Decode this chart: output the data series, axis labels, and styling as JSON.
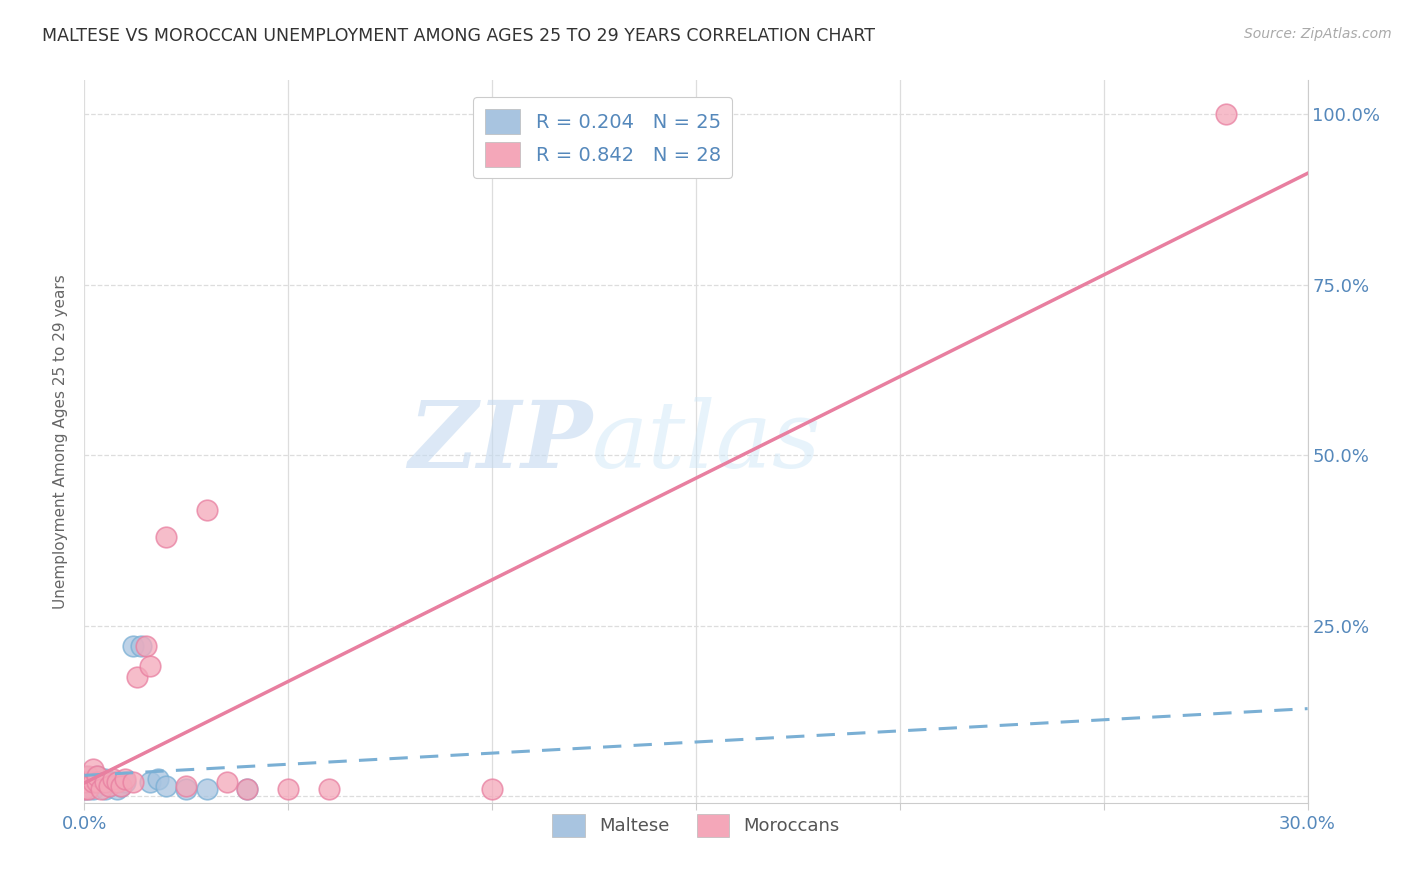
{
  "title": "MALTESE VS MOROCCAN UNEMPLOYMENT AMONG AGES 25 TO 29 YEARS CORRELATION CHART",
  "source": "Source: ZipAtlas.com",
  "ylabel": "Unemployment Among Ages 25 to 29 years",
  "xlim": [
    0.0,
    0.3
  ],
  "ylim": [
    -0.01,
    1.05
  ],
  "ytick_values": [
    0.0,
    0.25,
    0.5,
    0.75,
    1.0
  ],
  "xtick_values": [
    0.0,
    0.05,
    0.1,
    0.15,
    0.2,
    0.25,
    0.3
  ],
  "maltese_color": "#a8c4e0",
  "moroccan_color": "#f4a7b9",
  "maltese_edge_color": "#7aafd4",
  "moroccan_edge_color": "#e87fa0",
  "maltese_R": 0.204,
  "maltese_N": 25,
  "moroccan_R": 0.842,
  "moroccan_N": 28,
  "legend_label_maltese": "Maltese",
  "legend_label_moroccan": "Moroccans",
  "maltese_x": [
    0.0,
    0.0,
    0.0,
    0.001,
    0.001,
    0.002,
    0.002,
    0.003,
    0.003,
    0.004,
    0.005,
    0.005,
    0.006,
    0.007,
    0.008,
    0.009,
    0.01,
    0.012,
    0.014,
    0.016,
    0.018,
    0.02,
    0.025,
    0.03,
    0.04
  ],
  "maltese_y": [
    0.01,
    0.02,
    0.03,
    0.01,
    0.02,
    0.01,
    0.02,
    0.02,
    0.03,
    0.02,
    0.01,
    0.025,
    0.015,
    0.02,
    0.01,
    0.015,
    0.02,
    0.22,
    0.22,
    0.02,
    0.025,
    0.015,
    0.01,
    0.01,
    0.01
  ],
  "moroccan_x": [
    0.0,
    0.0,
    0.001,
    0.001,
    0.002,
    0.002,
    0.003,
    0.003,
    0.004,
    0.005,
    0.006,
    0.007,
    0.008,
    0.009,
    0.01,
    0.012,
    0.013,
    0.015,
    0.016,
    0.02,
    0.025,
    0.03,
    0.035,
    0.04,
    0.05,
    0.06,
    0.1,
    0.28
  ],
  "moroccan_y": [
    0.01,
    0.02,
    0.01,
    0.03,
    0.02,
    0.04,
    0.02,
    0.03,
    0.01,
    0.02,
    0.015,
    0.025,
    0.02,
    0.015,
    0.025,
    0.02,
    0.175,
    0.22,
    0.19,
    0.38,
    0.015,
    0.42,
    0.02,
    0.01,
    0.01,
    0.01,
    0.01,
    1.0
  ],
  "watermark_zip": "ZIP",
  "watermark_atlas": "atlas",
  "title_color": "#333333",
  "axis_label_color": "#5588bb",
  "grid_color": "#dddddd",
  "trendline_maltese_color": "#7aafd4",
  "trendline_moroccan_color": "#e87fa0",
  "legend_R_color": "#333333",
  "legend_N_color": "#5588bb"
}
